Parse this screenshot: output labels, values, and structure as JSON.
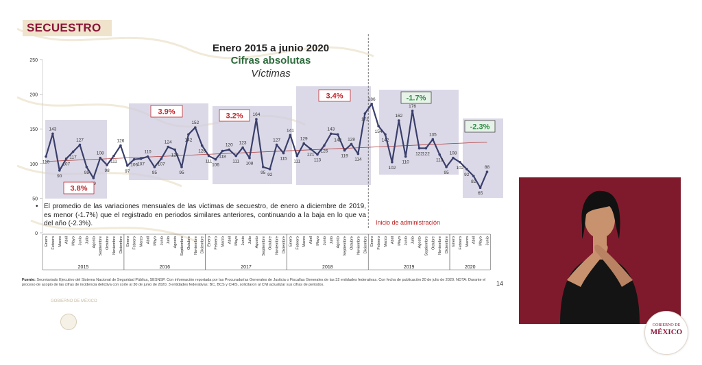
{
  "header": {
    "badge": "SECUESTRO"
  },
  "titles": {
    "line1": "Enero 2015 a junio 2020",
    "line2": "Cifras absolutas",
    "line3": "Víctimas"
  },
  "note": {
    "bullet": "•",
    "text": "El promedio de las variaciones mensuales de las víctimas de secuestro, de enero a diciembre de 2019, es menor (-1.7%) que el registrado en periodos similares anteriores, continuando a la baja en lo que va del año (-2.3%)."
  },
  "admin_label": "Inicio de administración",
  "footer": {
    "source_label": "Fuente:",
    "source_text": "Secretariado Ejecutivo del Sistema Nacional de Seguridad Pública, SESNSP. Con información reportada por las Procuradurías Generales de Justicia o Fiscalías Generales de las 32 entidades federativas. Con fecha de publicación 20 de julio de 2020. NOTA: Durante el proceso de acopio de las cifras de incidencia delictiva con corte al 30 de junio de 2020, 3 entidades federativas: BC, BCS y CHIS, solicitaron al CNI actualizar sus cifras de periodos.",
    "page_number": "14",
    "gob_text": "GOBIERNO DE MÉXICO"
  },
  "logo": {
    "line1": "GOBIERNO DE",
    "line2": "MÉXICO"
  },
  "colors": {
    "brand": "#8a1538",
    "line": "#3a3f6b",
    "band": "#cfccdf",
    "positive": "#c0262c",
    "negative": "#2d8a44",
    "trend": "#b23a3a",
    "video_bg": "#7f1a2c"
  },
  "chart_data": {
    "type": "line",
    "title": "Enero 2015 a junio 2020",
    "subtitle": "Cifras absolutas",
    "ylabel": "Víctimas",
    "ylim": [
      0,
      250
    ],
    "yticks": [
      0,
      50,
      100,
      150,
      200,
      250
    ],
    "grid": false,
    "months": [
      "Enero",
      "Febrero",
      "Marzo",
      "Abril",
      "Mayo",
      "Junio",
      "Julio",
      "Agosto",
      "Septiembre",
      "Octubre",
      "Noviembre",
      "Diciembre"
    ],
    "years": [
      "2015",
      "2016",
      "2017",
      "2018",
      "2019",
      "2020"
    ],
    "months_per_year": [
      12,
      12,
      12,
      12,
      12,
      6
    ],
    "values": [
      110,
      143,
      90,
      107,
      117,
      127,
      95,
      79,
      108,
      98,
      111,
      126,
      97,
      106,
      107,
      110,
      95,
      107,
      124,
      120,
      95,
      142,
      152,
      126,
      111,
      106,
      118,
      120,
      111,
      123,
      108,
      164,
      95,
      92,
      127,
      115,
      141,
      111,
      129,
      121,
      113,
      126,
      143,
      142,
      119,
      128,
      114,
      172,
      186,
      154,
      142,
      102,
      162,
      110,
      176,
      122,
      122,
      135,
      113,
      95,
      108,
      102,
      92,
      82,
      65,
      88
    ],
    "series": [
      {
        "values_ref": "values"
      }
    ],
    "period_changes": [
      {
        "year": "2015",
        "label": "3.8%",
        "direction": "up"
      },
      {
        "year": "2016",
        "label": "3.9%",
        "direction": "up"
      },
      {
        "year": "2017",
        "label": "3.2%",
        "direction": "up"
      },
      {
        "year": "2018",
        "label": "3.4%",
        "direction": "up"
      },
      {
        "year": "2019",
        "label": "-1.7%",
        "direction": "down"
      },
      {
        "year": "2020",
        "label": "-2.3%",
        "direction": "down"
      }
    ],
    "trend_line": {
      "start": 103,
      "end": 131
    },
    "admin_start_index": 47
  }
}
